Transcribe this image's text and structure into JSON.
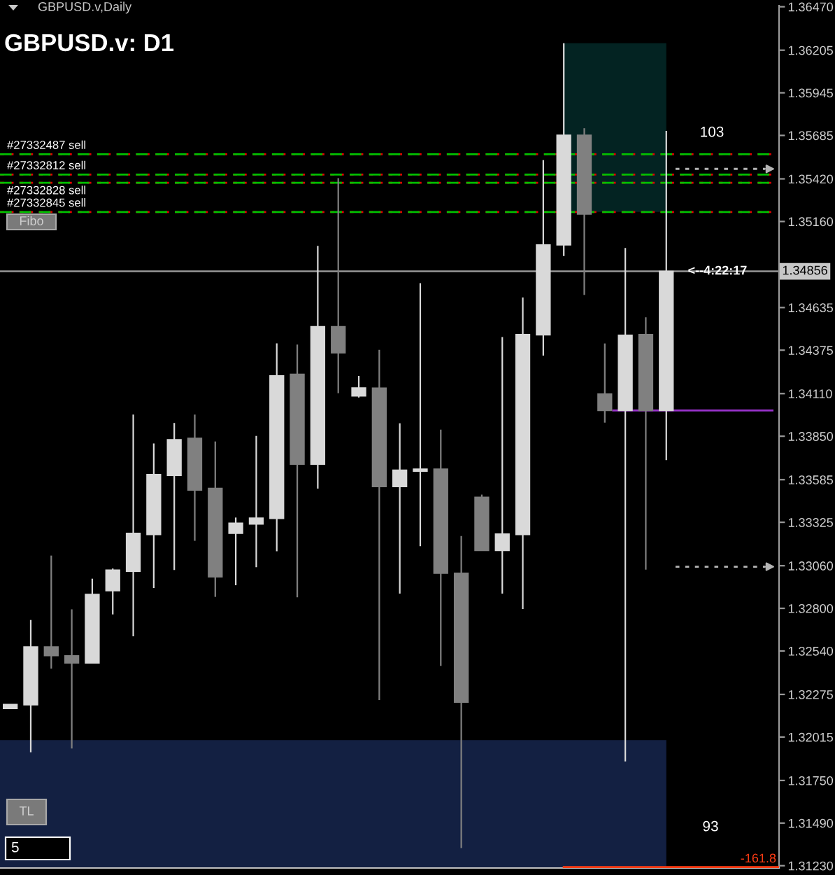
{
  "chart_data": {
    "type": "candlestick",
    "title": "GBPUSD.v: D1",
    "subtitle": "GBPUSD.v,Daily",
    "categories": [
      null,
      null,
      null,
      null,
      null,
      null,
      null,
      null,
      null,
      null,
      null,
      null,
      null,
      null,
      null,
      null,
      null,
      null,
      null,
      null,
      null,
      null,
      null,
      null,
      null,
      null,
      null,
      null,
      null,
      null,
      null,
      null,
      null,
      null,
      null,
      null,
      null,
      null
    ],
    "ohlc": [
      [
        1.32189,
        1.32214,
        1.32189,
        1.32214
      ],
      [
        1.32211,
        1.32729,
        1.31922,
        1.32565
      ],
      [
        1.32565,
        1.33122,
        1.32432,
        1.32511
      ],
      [
        1.32511,
        1.32794,
        1.31945,
        1.32466
      ],
      [
        1.32466,
        1.32981,
        1.32466,
        1.32885
      ],
      [
        1.32907,
        1.33043,
        1.32763,
        1.33034
      ],
      [
        1.33026,
        1.33982,
        1.3263,
        1.33258
      ],
      [
        1.3325,
        1.33806,
        1.32924,
        1.33617
      ],
      [
        1.33611,
        1.33931,
        1.33034,
        1.33829
      ],
      [
        1.33838,
        1.33982,
        1.33212,
        1.33521
      ],
      [
        1.33532,
        1.33818,
        1.3287,
        1.32992
      ],
      [
        1.33258,
        1.33354,
        1.32941,
        1.3332
      ],
      [
        1.33314,
        1.33852,
        1.33051,
        1.33351
      ],
      [
        1.33348,
        1.34417,
        1.33148,
        1.34219
      ],
      [
        1.34228,
        1.34409,
        1.32868,
        1.33679
      ],
      [
        1.33679,
        1.35011,
        1.3353,
        1.34519
      ],
      [
        1.34519,
        1.35424,
        1.34112,
        1.34358
      ],
      [
        1.34096,
        1.34218,
        1.34086,
        1.34145
      ],
      [
        1.34144,
        1.34377,
        1.32241,
        1.33543
      ],
      [
        1.33543,
        1.33929,
        1.3289,
        1.33643
      ],
      [
        1.33637,
        1.34784,
        1.33179,
        1.3365
      ],
      [
        1.3365,
        1.3389,
        1.32449,
        1.33014
      ],
      [
        1.33014,
        1.33241,
        1.31338,
        1.32227
      ],
      [
        1.33478,
        1.33494,
        1.33153,
        1.33153
      ],
      [
        1.33153,
        1.34455,
        1.3289,
        1.33254
      ],
      [
        1.3325,
        1.34696,
        1.32796,
        1.34471
      ],
      [
        1.34468,
        1.35534,
        1.34342,
        1.35017
      ],
      [
        1.35017,
        1.36248,
        1.34949,
        1.35687
      ],
      [
        1.35687,
        1.35729,
        1.34712,
        1.35205
      ],
      [
        1.34108,
        1.34416,
        1.33933,
        1.34007
      ],
      [
        1.34007,
        1.34998,
        1.31866,
        1.34466
      ],
      [
        1.34471,
        1.34576,
        1.33036,
        1.34007
      ],
      [
        1.34007,
        1.35713,
        1.33705,
        1.34856
      ],
      null,
      null,
      null,
      null,
      null
    ],
    "colors": [
      "#d9d9d9",
      "#d9d9d9",
      "#808080",
      "#808080",
      "#d9d9d9",
      "#d9d9d9",
      "#d9d9d9",
      "#d9d9d9",
      "#d9d9d9",
      "#808080",
      "#808080",
      "#d9d9d9",
      "#d9d9d9",
      "#d9d9d9",
      "#808080",
      "#d9d9d9",
      "#808080",
      "#d9d9d9",
      "#808080",
      "#d9d9d9",
      "#d9d9d9",
      "#808080",
      "#808080",
      "#808080",
      "#d9d9d9",
      "#d9d9d9",
      "#d9d9d9",
      "#d9d9d9",
      "#808080",
      "#808080",
      "#d9d9d9",
      "#808080",
      "#d9d9d9",
      null,
      null,
      null,
      null,
      null
    ],
    "ylim": [
      1.31216,
      1.36477
    ],
    "yticks": [
      {
        "value": 1.3647,
        "label": "1.36470"
      },
      {
        "value": 1.36205,
        "label": "1.36205"
      },
      {
        "value": 1.35945,
        "label": "1.35945"
      },
      {
        "value": 1.35685,
        "label": "1.35685"
      },
      {
        "value": 1.3542,
        "label": "1.35420"
      },
      {
        "value": 1.3516,
        "label": "1.35160"
      },
      {
        "value": 1.34635,
        "label": "1.34635"
      },
      {
        "value": 1.34375,
        "label": "1.34375"
      },
      {
        "value": 1.3411,
        "label": "1.34110"
      },
      {
        "value": 1.3385,
        "label": "1.33850"
      },
      {
        "value": 1.33585,
        "label": "1.33585"
      },
      {
        "value": 1.33325,
        "label": "1.33325"
      },
      {
        "value": 1.3306,
        "label": "1.33060"
      },
      {
        "value": 1.328,
        "label": "1.32800"
      },
      {
        "value": 1.3254,
        "label": "1.32540"
      },
      {
        "value": 1.32275,
        "label": "1.32275"
      },
      {
        "value": 1.32015,
        "label": "1.32015"
      },
      {
        "value": 1.3175,
        "label": "1.31750"
      },
      {
        "value": 1.3149,
        "label": "1.31490"
      },
      {
        "value": 1.3123,
        "label": "1.31230"
      }
    ],
    "tick_labels": "y",
    "ref_lines": [
      {
        "axis": "y",
        "value": 1.3557,
        "label": "#27332487 sell",
        "color": "#00c000",
        "line_style": "dashed"
      },
      {
        "axis": "y",
        "value": 1.3557,
        "color": "#e00000",
        "line_style": "dotted"
      },
      {
        "axis": "y",
        "value": 1.35446,
        "label": "#27332812 sell",
        "color": "#00c000",
        "line_style": "dashed"
      },
      {
        "axis": "y",
        "value": 1.35446,
        "color": "#e00000",
        "line_style": "dotted"
      },
      {
        "axis": "y",
        "value": 1.35396,
        "label": "#27332828 sell",
        "color": "#00c000",
        "line_style": "dashed"
      },
      {
        "axis": "y",
        "value": 1.35396,
        "color": "#e00000",
        "line_style": "dotted"
      },
      {
        "axis": "y",
        "value": 1.35218,
        "label": "#27332845 sell",
        "color": "#00c000",
        "line_style": "dashed"
      },
      {
        "axis": "y",
        "value": 1.35218,
        "color": "#e00000",
        "line_style": "dotted"
      },
      {
        "axis": "y",
        "value": 1.34856,
        "label": "1.34856",
        "color": "#8c8c8c",
        "line_style": "solid"
      },
      {
        "axis": "y",
        "value": 1.34007,
        "color": "#9932cc",
        "line_style": "solid"
      },
      {
        "axis": "y",
        "value": 1.35481,
        "color": "#b4b4b4",
        "line_style": "dotted"
      },
      {
        "axis": "y",
        "value": 1.33054,
        "color": "#b4b4b4",
        "line_style": "dotted"
      },
      {
        "axis": "y",
        "value": 1.31222,
        "color": "#ff3c14",
        "line_style": "solid"
      }
    ],
    "bands": [
      {
        "axis": "y",
        "from": 1.35218,
        "to": 1.36248,
        "color": "#032322"
      },
      {
        "axis": "y",
        "from": 1.31216,
        "to": 1.31996,
        "color": "#132042"
      }
    ],
    "annotations": [
      {
        "text": "<--4:22:17",
        "y": 1.34856
      },
      "103",
      "93",
      "Fibo",
      "TL",
      "5",
      {
        "text": "-161.8",
        "y": 1.31222
      }
    ]
  }
}
